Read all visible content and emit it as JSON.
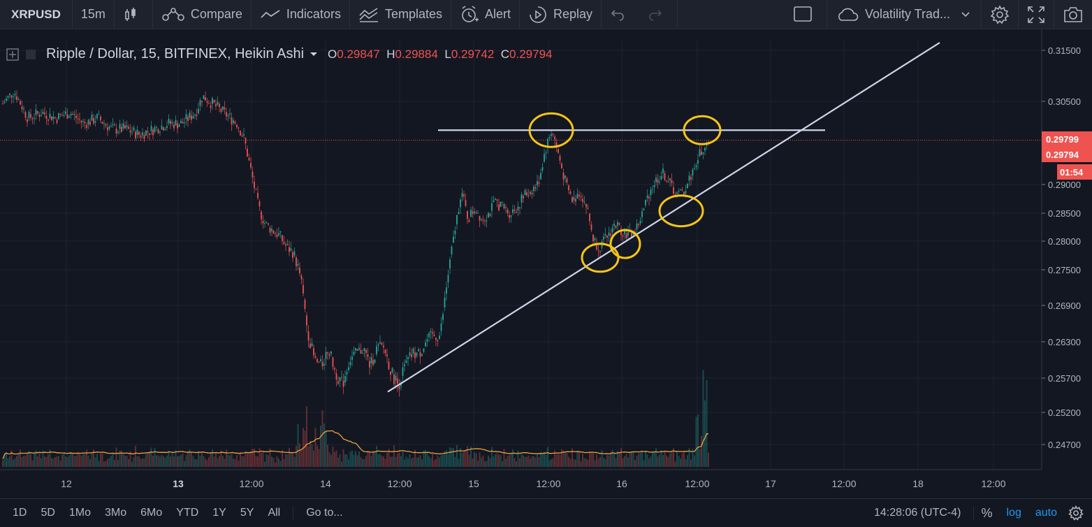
{
  "toolbar": {
    "symbol": "XRPUSD",
    "interval": "15m",
    "compare": "Compare",
    "indicators": "Indicators",
    "templates": "Templates",
    "alert": "Alert",
    "replay": "Replay",
    "layout_name": "Volatility Trad..."
  },
  "legend": {
    "title": "Ripple / Dollar, 15, BITFINEX, Heikin Ashi",
    "open_label": "O",
    "open": "0.29847",
    "high_label": "H",
    "high": "0.29884",
    "low_label": "L",
    "low": "0.29742",
    "close_label": "C",
    "close": "0.29794"
  },
  "price_axis": {
    "ticks": [
      "0.31500",
      "0.30500",
      "0.29000",
      "0.28500",
      "0.28000",
      "0.27500",
      "0.26900",
      "0.26300",
      "0.25700",
      "0.25200",
      "0.24700"
    ],
    "marker_top": "0.29799",
    "marker_bottom": "0.29794",
    "countdown": "01:54"
  },
  "time_axis": {
    "ticks": [
      "12",
      "13",
      "12:00",
      "14",
      "12:00",
      "15",
      "12:00",
      "16",
      "12:00",
      "17",
      "12:00",
      "18",
      "12:00"
    ],
    "bold": [
      "13"
    ]
  },
  "bottom_bar": {
    "ranges": [
      "1D",
      "5D",
      "1Mo",
      "3Mo",
      "6Mo",
      "YTD",
      "1Y",
      "5Y",
      "All"
    ],
    "goto": "Go to...",
    "clock": "14:28:06 (UTC-4)",
    "percent": "%",
    "log": "log",
    "auto": "auto"
  },
  "colors": {
    "background": "#131722",
    "up": "#26a69a",
    "down": "#ef5350",
    "drawing_line": "#d1d4e8",
    "highlight_circle": "#f5c518",
    "volume_ma": "#e8a33d"
  },
  "chart_data": {
    "type": "candlestick",
    "title": "Ripple / Dollar, 15, BITFINEX, Heikin Ashi",
    "price_range": [
      0.2435,
      0.3165
    ],
    "last_price": 0.29794,
    "dates": [
      "12",
      "13",
      "14",
      "15",
      "16",
      "17",
      "18"
    ],
    "trajectory": [
      [
        0,
        0.304
      ],
      [
        20,
        0.307
      ],
      [
        40,
        0.302
      ],
      [
        60,
        0.303
      ],
      [
        80,
        0.302
      ],
      [
        100,
        0.303
      ],
      [
        120,
        0.301
      ],
      [
        140,
        0.302
      ],
      [
        160,
        0.3
      ],
      [
        180,
        0.3
      ],
      [
        200,
        0.299
      ],
      [
        220,
        0.3
      ],
      [
        240,
        0.301
      ],
      [
        260,
        0.301
      ],
      [
        280,
        0.303
      ],
      [
        290,
        0.306
      ],
      [
        300,
        0.305
      ],
      [
        320,
        0.303
      ],
      [
        340,
        0.301
      ],
      [
        350,
        0.298
      ],
      [
        360,
        0.292
      ],
      [
        370,
        0.286
      ],
      [
        380,
        0.283
      ],
      [
        390,
        0.282
      ],
      [
        400,
        0.281
      ],
      [
        410,
        0.279
      ],
      [
        420,
        0.278
      ],
      [
        430,
        0.274
      ],
      [
        440,
        0.265
      ],
      [
        450,
        0.26
      ],
      [
        460,
        0.259
      ],
      [
        470,
        0.262
      ],
      [
        480,
        0.258
      ],
      [
        490,
        0.256
      ],
      [
        500,
        0.26
      ],
      [
        510,
        0.261
      ],
      [
        520,
        0.262
      ],
      [
        530,
        0.259
      ],
      [
        540,
        0.262
      ],
      [
        550,
        0.262
      ],
      [
        560,
        0.258
      ],
      [
        570,
        0.256
      ],
      [
        580,
        0.259
      ],
      [
        590,
        0.261
      ],
      [
        600,
        0.261
      ],
      [
        610,
        0.263
      ],
      [
        620,
        0.264
      ],
      [
        630,
        0.264
      ],
      [
        640,
        0.273
      ],
      [
        650,
        0.281
      ],
      [
        660,
        0.289
      ],
      [
        670,
        0.284
      ],
      [
        680,
        0.286
      ],
      [
        690,
        0.284
      ],
      [
        700,
        0.285
      ],
      [
        710,
        0.287
      ],
      [
        720,
        0.286
      ],
      [
        730,
        0.285
      ],
      [
        740,
        0.286
      ],
      [
        750,
        0.288
      ],
      [
        760,
        0.289
      ],
      [
        770,
        0.29
      ],
      [
        780,
        0.296
      ],
      [
        790,
        0.3
      ],
      [
        800,
        0.295
      ],
      [
        810,
        0.29
      ],
      [
        820,
        0.287
      ],
      [
        830,
        0.289
      ],
      [
        840,
        0.286
      ],
      [
        850,
        0.28
      ],
      [
        860,
        0.279
      ],
      [
        870,
        0.281
      ],
      [
        880,
        0.283
      ],
      [
        890,
        0.282
      ],
      [
        900,
        0.281
      ],
      [
        910,
        0.282
      ],
      [
        920,
        0.285
      ],
      [
        930,
        0.289
      ],
      [
        940,
        0.291
      ],
      [
        950,
        0.292
      ],
      [
        960,
        0.29
      ],
      [
        970,
        0.288
      ],
      [
        980,
        0.289
      ],
      [
        990,
        0.292
      ],
      [
        1000,
        0.295
      ],
      [
        1008,
        0.297
      ],
      [
        1015,
        0.298
      ]
    ],
    "support_line": {
      "from": [
        555,
        0.255
      ],
      "to": [
        1345,
        0.3165
      ]
    },
    "resistance_line": {
      "from": [
        627,
        0.2998
      ],
      "to": [
        1181,
        0.2998
      ]
    },
    "highlights": [
      [
        789,
        0.2998
      ],
      [
        1005,
        0.2998
      ],
      [
        859,
        0.2771
      ],
      [
        895,
        0.2795
      ],
      [
        975,
        0.2854
      ]
    ]
  }
}
